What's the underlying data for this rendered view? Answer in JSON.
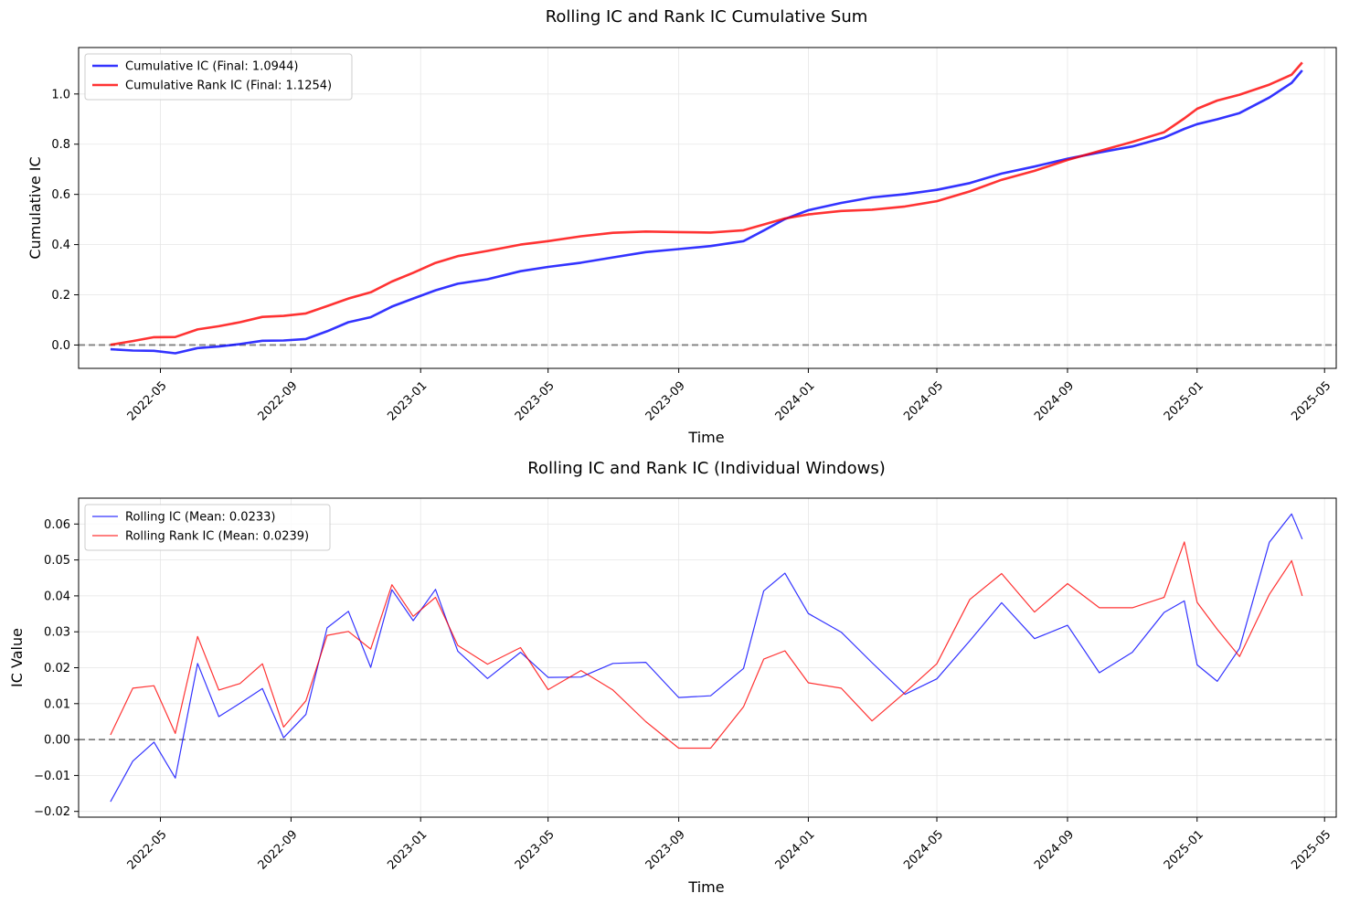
{
  "chart_data": [
    {
      "type": "line",
      "title": "Rolling IC and Rank IC Cumulative Sum",
      "xlabel": "Time",
      "ylabel": "Cumulative IC",
      "xlim": [
        "2022-02-13",
        "2025-05-12"
      ],
      "ylim": [
        -0.093,
        1.185
      ],
      "yticks": [
        0.0,
        0.2,
        0.4,
        0.6,
        0.8,
        1.0
      ],
      "ytick_labels": [
        "0.0",
        "0.2",
        "0.4",
        "0.6",
        "0.8",
        "1.0"
      ],
      "xticks": [
        "2022-05-01",
        "2022-09-01",
        "2023-01-01",
        "2023-05-01",
        "2023-09-01",
        "2024-01-01",
        "2024-05-01",
        "2024-09-01",
        "2025-01-01",
        "2025-05-01"
      ],
      "xtick_labels": [
        "2022-05",
        "2022-09",
        "2023-01",
        "2023-05",
        "2023-09",
        "2024-01",
        "2024-05",
        "2024-09",
        "2025-01",
        "2025-05"
      ],
      "grid": true,
      "legend_position": "upper-left",
      "reference_line": 0.0,
      "series": [
        {
          "name": "Cumulative IC (Final: 1.0944)",
          "color": "#0000ff",
          "points": [
            [
              "2022-03-15",
              -0.017
            ],
            [
              "2022-04-05",
              -0.022
            ],
            [
              "2022-04-25",
              -0.023
            ],
            [
              "2022-05-15",
              -0.033
            ],
            [
              "2022-06-05",
              -0.012
            ],
            [
              "2022-06-25",
              -0.006
            ],
            [
              "2022-07-15",
              0.004
            ],
            [
              "2022-08-05",
              0.017
            ],
            [
              "2022-08-25",
              0.018
            ],
            [
              "2022-09-15",
              0.024
            ],
            [
              "2022-10-05",
              0.055
            ],
            [
              "2022-10-25",
              0.091
            ],
            [
              "2022-11-15",
              0.111
            ],
            [
              "2022-12-05",
              0.153
            ],
            [
              "2022-12-25",
              0.185
            ],
            [
              "2023-01-15",
              0.218
            ],
            [
              "2023-02-05",
              0.244
            ],
            [
              "2023-03-05",
              0.262
            ],
            [
              "2023-04-05",
              0.294
            ],
            [
              "2023-05-01",
              0.311
            ],
            [
              "2023-06-01",
              0.328
            ],
            [
              "2023-07-01",
              0.349
            ],
            [
              "2023-08-01",
              0.37
            ],
            [
              "2023-09-01",
              0.382
            ],
            [
              "2023-10-01",
              0.394
            ],
            [
              "2023-11-01",
              0.414
            ],
            [
              "2023-11-20",
              0.456
            ],
            [
              "2023-12-10",
              0.502
            ],
            [
              "2024-01-01",
              0.537
            ],
            [
              "2024-02-01",
              0.566
            ],
            [
              "2024-03-01",
              0.588
            ],
            [
              "2024-04-01",
              0.601
            ],
            [
              "2024-05-01",
              0.618
            ],
            [
              "2024-06-01",
              0.645
            ],
            [
              "2024-07-01",
              0.683
            ],
            [
              "2024-08-01",
              0.711
            ],
            [
              "2024-09-01",
              0.742
            ],
            [
              "2024-10-01",
              0.767
            ],
            [
              "2024-11-01",
              0.791
            ],
            [
              "2024-12-01",
              0.826
            ],
            [
              "2024-12-20",
              0.861
            ],
            [
              "2025-01-01",
              0.88
            ],
            [
              "2025-01-20",
              0.899
            ],
            [
              "2025-02-10",
              0.924
            ],
            [
              "2025-03-10",
              0.986
            ],
            [
              "2025-03-31",
              1.044
            ],
            [
              "2025-04-10",
              1.0944
            ]
          ]
        },
        {
          "name": "Cumulative Rank IC (Final: 1.1254)",
          "color": "#ff0000",
          "points": [
            [
              "2022-03-15",
              0.001
            ],
            [
              "2022-04-05",
              0.016
            ],
            [
              "2022-04-25",
              0.031
            ],
            [
              "2022-05-15",
              0.032
            ],
            [
              "2022-06-05",
              0.062
            ],
            [
              "2022-06-25",
              0.075
            ],
            [
              "2022-07-15",
              0.091
            ],
            [
              "2022-08-05",
              0.112
            ],
            [
              "2022-08-25",
              0.116
            ],
            [
              "2022-09-15",
              0.126
            ],
            [
              "2022-10-05",
              0.155
            ],
            [
              "2022-10-25",
              0.185
            ],
            [
              "2022-11-15",
              0.21
            ],
            [
              "2022-12-05",
              0.253
            ],
            [
              "2022-12-25",
              0.288
            ],
            [
              "2023-01-15",
              0.327
            ],
            [
              "2023-02-05",
              0.354
            ],
            [
              "2023-03-05",
              0.375
            ],
            [
              "2023-04-05",
              0.4
            ],
            [
              "2023-05-01",
              0.414
            ],
            [
              "2023-06-01",
              0.433
            ],
            [
              "2023-07-01",
              0.447
            ],
            [
              "2023-08-01",
              0.452
            ],
            [
              "2023-09-01",
              0.45
            ],
            [
              "2023-10-01",
              0.448
            ],
            [
              "2023-11-01",
              0.457
            ],
            [
              "2023-11-20",
              0.48
            ],
            [
              "2023-12-10",
              0.504
            ],
            [
              "2024-01-01",
              0.52
            ],
            [
              "2024-02-01",
              0.534
            ],
            [
              "2024-03-01",
              0.539
            ],
            [
              "2024-04-01",
              0.552
            ],
            [
              "2024-05-01",
              0.573
            ],
            [
              "2024-06-01",
              0.612
            ],
            [
              "2024-07-01",
              0.658
            ],
            [
              "2024-08-01",
              0.694
            ],
            [
              "2024-09-01",
              0.737
            ],
            [
              "2024-10-01",
              0.773
            ],
            [
              "2024-11-01",
              0.809
            ],
            [
              "2024-12-01",
              0.848
            ],
            [
              "2024-12-20",
              0.903
            ],
            [
              "2025-01-01",
              0.941
            ],
            [
              "2025-01-20",
              0.974
            ],
            [
              "2025-02-10",
              0.997
            ],
            [
              "2025-03-10",
              1.037
            ],
            [
              "2025-03-31",
              1.077
            ],
            [
              "2025-04-10",
              1.1254
            ]
          ]
        }
      ]
    },
    {
      "type": "line",
      "title": "Rolling IC and Rank IC (Individual Windows)",
      "xlabel": "Time",
      "ylabel": "IC Value",
      "xlim": [
        "2022-02-13",
        "2025-05-12"
      ],
      "ylim": [
        -0.0216,
        0.0672
      ],
      "yticks": [
        -0.02,
        -0.01,
        0.0,
        0.01,
        0.02,
        0.03,
        0.04,
        0.05,
        0.06
      ],
      "ytick_labels": [
        "−0.02",
        "−0.01",
        "0.00",
        "0.01",
        "0.02",
        "0.03",
        "0.04",
        "0.05",
        "0.06"
      ],
      "xticks": [
        "2022-05-01",
        "2022-09-01",
        "2023-01-01",
        "2023-05-01",
        "2023-09-01",
        "2024-01-01",
        "2024-05-01",
        "2024-09-01",
        "2025-01-01",
        "2025-05-01"
      ],
      "xtick_labels": [
        "2022-05",
        "2022-09",
        "2023-01",
        "2023-05",
        "2023-09",
        "2024-01",
        "2024-05",
        "2024-09",
        "2025-01",
        "2025-05"
      ],
      "grid": true,
      "legend_position": "upper-left",
      "reference_line": 0.0,
      "series": [
        {
          "name": "Rolling IC (Mean: 0.0233)",
          "color": "#0000ff",
          "points": [
            [
              "2022-03-15",
              -0.0173
            ],
            [
              "2022-04-05",
              -0.006
            ],
            [
              "2022-04-25",
              -0.0007
            ],
            [
              "2022-05-15",
              -0.0107
            ],
            [
              "2022-06-05",
              0.0212
            ],
            [
              "2022-06-25",
              0.0064
            ],
            [
              "2022-07-15",
              0.0101
            ],
            [
              "2022-08-05",
              0.0142
            ],
            [
              "2022-08-25",
              0.0005
            ],
            [
              "2022-09-15",
              0.007
            ],
            [
              "2022-10-05",
              0.0311
            ],
            [
              "2022-10-25",
              0.0357
            ],
            [
              "2022-11-15",
              0.0201
            ],
            [
              "2022-12-05",
              0.0417
            ],
            [
              "2022-12-25",
              0.0331
            ],
            [
              "2023-01-15",
              0.0418
            ],
            [
              "2023-02-05",
              0.0246
            ],
            [
              "2023-03-05",
              0.017
            ],
            [
              "2023-04-05",
              0.0243
            ],
            [
              "2023-05-01",
              0.0173
            ],
            [
              "2023-06-01",
              0.0174
            ],
            [
              "2023-07-01",
              0.0212
            ],
            [
              "2023-08-01",
              0.0215
            ],
            [
              "2023-09-01",
              0.0117
            ],
            [
              "2023-10-01",
              0.0122
            ],
            [
              "2023-11-01",
              0.0198
            ],
            [
              "2023-11-20",
              0.0414
            ],
            [
              "2023-12-10",
              0.0463
            ],
            [
              "2024-01-01",
              0.0351
            ],
            [
              "2024-02-01",
              0.0299
            ],
            [
              "2024-03-01",
              0.0214
            ],
            [
              "2024-04-01",
              0.0126
            ],
            [
              "2024-05-01",
              0.0169
            ],
            [
              "2024-06-01",
              0.0275
            ],
            [
              "2024-07-01",
              0.0381
            ],
            [
              "2024-08-01",
              0.0281
            ],
            [
              "2024-09-01",
              0.0318
            ],
            [
              "2024-10-01",
              0.0186
            ],
            [
              "2024-11-01",
              0.0243
            ],
            [
              "2024-12-01",
              0.0354
            ],
            [
              "2024-12-20",
              0.0386
            ],
            [
              "2025-01-01",
              0.0208
            ],
            [
              "2025-01-20",
              0.0162
            ],
            [
              "2025-02-10",
              0.0254
            ],
            [
              "2025-03-10",
              0.0549
            ],
            [
              "2025-03-31",
              0.0628
            ],
            [
              "2025-04-10",
              0.0558
            ]
          ]
        },
        {
          "name": "Rolling Rank IC (Mean: 0.0239)",
          "color": "#ff0000",
          "points": [
            [
              "2022-03-15",
              0.0013
            ],
            [
              "2022-04-05",
              0.0143
            ],
            [
              "2022-04-25",
              0.015
            ],
            [
              "2022-05-15",
              0.0017
            ],
            [
              "2022-06-05",
              0.0287
            ],
            [
              "2022-06-25",
              0.0138
            ],
            [
              "2022-07-15",
              0.0156
            ],
            [
              "2022-08-05",
              0.0211
            ],
            [
              "2022-08-25",
              0.0035
            ],
            [
              "2022-09-15",
              0.0108
            ],
            [
              "2022-10-05",
              0.029
            ],
            [
              "2022-10-25",
              0.0301
            ],
            [
              "2022-11-15",
              0.0252
            ],
            [
              "2022-12-05",
              0.0431
            ],
            [
              "2022-12-25",
              0.0343
            ],
            [
              "2023-01-15",
              0.0396
            ],
            [
              "2023-02-05",
              0.0262
            ],
            [
              "2023-03-05",
              0.021
            ],
            [
              "2023-04-05",
              0.0256
            ],
            [
              "2023-05-01",
              0.0139
            ],
            [
              "2023-06-01",
              0.0192
            ],
            [
              "2023-07-01",
              0.0138
            ],
            [
              "2023-08-01",
              0.005
            ],
            [
              "2023-09-01",
              -0.0024
            ],
            [
              "2023-10-01",
              -0.0024
            ],
            [
              "2023-11-01",
              0.0091
            ],
            [
              "2023-11-20",
              0.0224
            ],
            [
              "2023-12-10",
              0.0247
            ],
            [
              "2024-01-01",
              0.0158
            ],
            [
              "2024-02-01",
              0.0143
            ],
            [
              "2024-03-01",
              0.0052
            ],
            [
              "2024-04-01",
              0.0131
            ],
            [
              "2024-05-01",
              0.0211
            ],
            [
              "2024-06-01",
              0.039
            ],
            [
              "2024-07-01",
              0.0462
            ],
            [
              "2024-08-01",
              0.0355
            ],
            [
              "2024-09-01",
              0.0434
            ],
            [
              "2024-10-01",
              0.0367
            ],
            [
              "2024-11-01",
              0.0367
            ],
            [
              "2024-12-01",
              0.0396
            ],
            [
              "2024-12-20",
              0.055
            ],
            [
              "2025-01-01",
              0.0382
            ],
            [
              "2025-01-20",
              0.0307
            ],
            [
              "2025-02-10",
              0.0231
            ],
            [
              "2025-03-10",
              0.0404
            ],
            [
              "2025-03-31",
              0.0498
            ],
            [
              "2025-04-10",
              0.04
            ]
          ]
        }
      ]
    }
  ]
}
